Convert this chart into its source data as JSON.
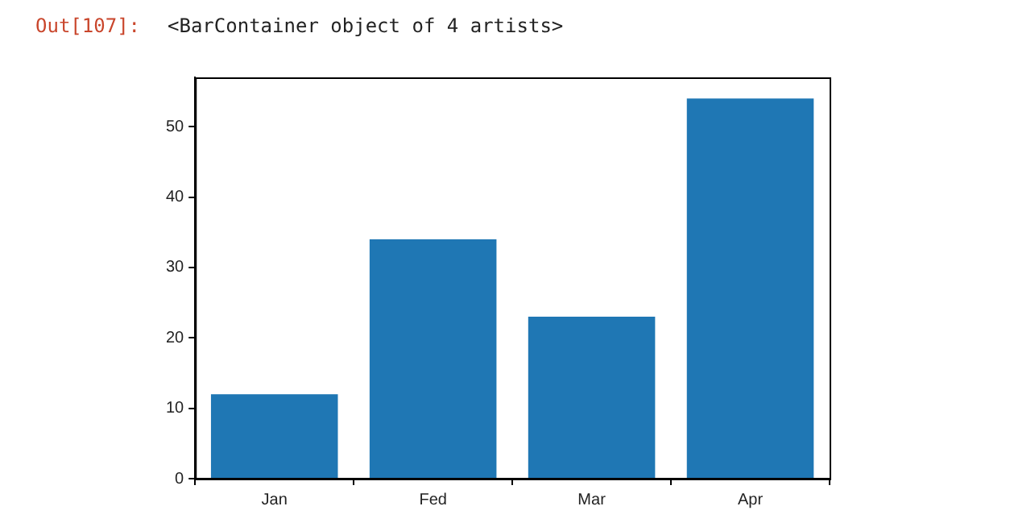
{
  "chart_data": {
    "type": "bar",
    "categories": [
      "Jan",
      "Fed",
      "Mar",
      "Apr"
    ],
    "values": [
      12,
      34,
      23,
      54
    ],
    "color": "#1f77b4",
    "ylim": [
      0,
      57
    ],
    "yticks": [
      0,
      10,
      20,
      30,
      40,
      50
    ],
    "grid": false,
    "legend": false,
    "annotations": [
      "Out[107]:",
      "<BarContainer object of 4 artists>"
    ]
  }
}
